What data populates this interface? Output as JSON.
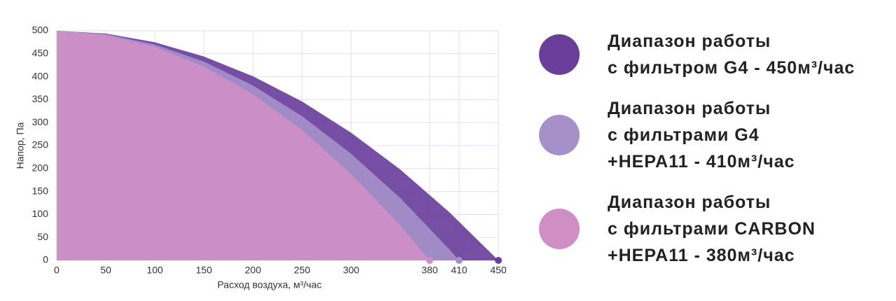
{
  "chart_data": {
    "type": "area",
    "xlabel": "Расход воздуха, м³/час",
    "ylabel": "Напор, Па",
    "xlim": [
      0,
      450
    ],
    "ylim": [
      0,
      500
    ],
    "xticks": [
      0,
      50,
      100,
      150,
      200,
      250,
      300,
      380,
      410,
      450
    ],
    "yticks": [
      0,
      50,
      100,
      150,
      200,
      250,
      300,
      350,
      400,
      450,
      500
    ],
    "grid": true,
    "series": [
      {
        "name": "Диапазон работы\nс фильтром G4 - 450м³/час",
        "color": "#6a3f9c",
        "x": [
          0,
          50,
          100,
          150,
          200,
          250,
          300,
          350,
          400,
          450
        ],
        "values": [
          500,
          494,
          475,
          444,
          401,
          346,
          278,
          198,
          105,
          0
        ]
      },
      {
        "name": "Диапазон работы\nс фильтрами G4\n+HEPA11 - 410м³/час",
        "color": "#a590ca",
        "x": [
          0,
          50,
          100,
          150,
          200,
          250,
          300,
          350,
          400,
          410
        ],
        "values": [
          500,
          493,
          470,
          433,
          381,
          314,
          232,
          136,
          24,
          0
        ]
      },
      {
        "name": "Диапазон работы\nс фильтрами CARBON\n+HEPA11 - 380м³/час",
        "color": "#cf8fc4",
        "x": [
          0,
          50,
          100,
          150,
          200,
          250,
          300,
          350,
          380
        ],
        "values": [
          500,
          491,
          465,
          422,
          362,
          284,
          188,
          76,
          0
        ]
      }
    ]
  }
}
